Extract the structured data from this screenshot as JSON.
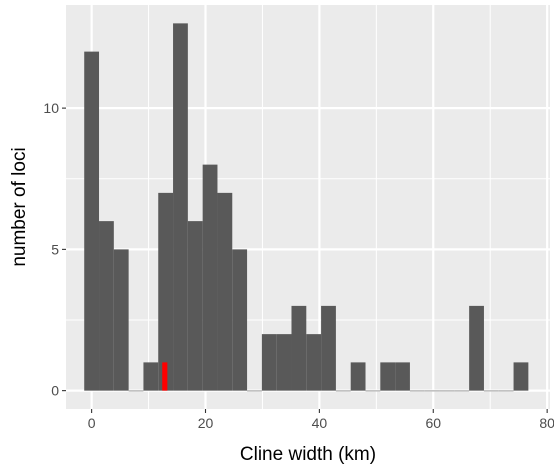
{
  "chart_data": {
    "type": "bar",
    "subtype": "histogram",
    "title": "",
    "xlabel": "Cline width (km)",
    "ylabel": "number of loci",
    "xlim": [
      -4.5,
      80.5
    ],
    "ylim": [
      -0.65,
      13.65
    ],
    "x_ticks": [
      0,
      20,
      40,
      60,
      80
    ],
    "y_ticks": [
      0,
      5,
      10
    ],
    "grid": true,
    "legend": "none",
    "bin_width": 2.6,
    "bins": [
      {
        "x0": -1.3,
        "x1": 1.3,
        "count": 12
      },
      {
        "x0": 1.3,
        "x1": 3.9,
        "count": 6
      },
      {
        "x0": 3.9,
        "x1": 6.5,
        "count": 5
      },
      {
        "x0": 6.5,
        "x1": 9.1,
        "count": 0
      },
      {
        "x0": 9.1,
        "x1": 11.7,
        "count": 1
      },
      {
        "x0": 11.7,
        "x1": 14.3,
        "count": 7
      },
      {
        "x0": 14.3,
        "x1": 16.9,
        "count": 13
      },
      {
        "x0": 16.9,
        "x1": 19.5,
        "count": 6
      },
      {
        "x0": 19.5,
        "x1": 22.1,
        "count": 8
      },
      {
        "x0": 22.1,
        "x1": 24.7,
        "count": 7
      },
      {
        "x0": 24.7,
        "x1": 27.3,
        "count": 5
      },
      {
        "x0": 27.3,
        "x1": 29.9,
        "count": 0
      },
      {
        "x0": 29.9,
        "x1": 32.5,
        "count": 2
      },
      {
        "x0": 32.5,
        "x1": 35.1,
        "count": 2
      },
      {
        "x0": 35.1,
        "x1": 37.7,
        "count": 3
      },
      {
        "x0": 37.7,
        "x1": 40.3,
        "count": 2
      },
      {
        "x0": 40.3,
        "x1": 42.9,
        "count": 3
      },
      {
        "x0": 42.9,
        "x1": 45.5,
        "count": 0
      },
      {
        "x0": 45.5,
        "x1": 48.1,
        "count": 1
      },
      {
        "x0": 48.1,
        "x1": 50.7,
        "count": 0
      },
      {
        "x0": 50.7,
        "x1": 53.3,
        "count": 1
      },
      {
        "x0": 53.3,
        "x1": 55.9,
        "count": 1
      },
      {
        "x0": 55.9,
        "x1": 58.5,
        "count": 0
      },
      {
        "x0": 58.5,
        "x1": 61.1,
        "count": 0
      },
      {
        "x0": 61.1,
        "x1": 63.7,
        "count": 0
      },
      {
        "x0": 63.7,
        "x1": 66.3,
        "count": 0
      },
      {
        "x0": 66.3,
        "x1": 68.9,
        "count": 3
      },
      {
        "x0": 68.9,
        "x1": 71.5,
        "count": 0
      },
      {
        "x0": 71.5,
        "x1": 74.1,
        "count": 0
      },
      {
        "x0": 74.1,
        "x1": 76.7,
        "count": 1
      }
    ],
    "highlight": {
      "x0": 12.4,
      "x1": 13.3,
      "count": 1,
      "color": "#ff0000"
    },
    "colors": {
      "bar": "#595959",
      "panel": "#ebebeb",
      "grid": "#ffffff",
      "tick_text": "#4d4d4d"
    }
  }
}
